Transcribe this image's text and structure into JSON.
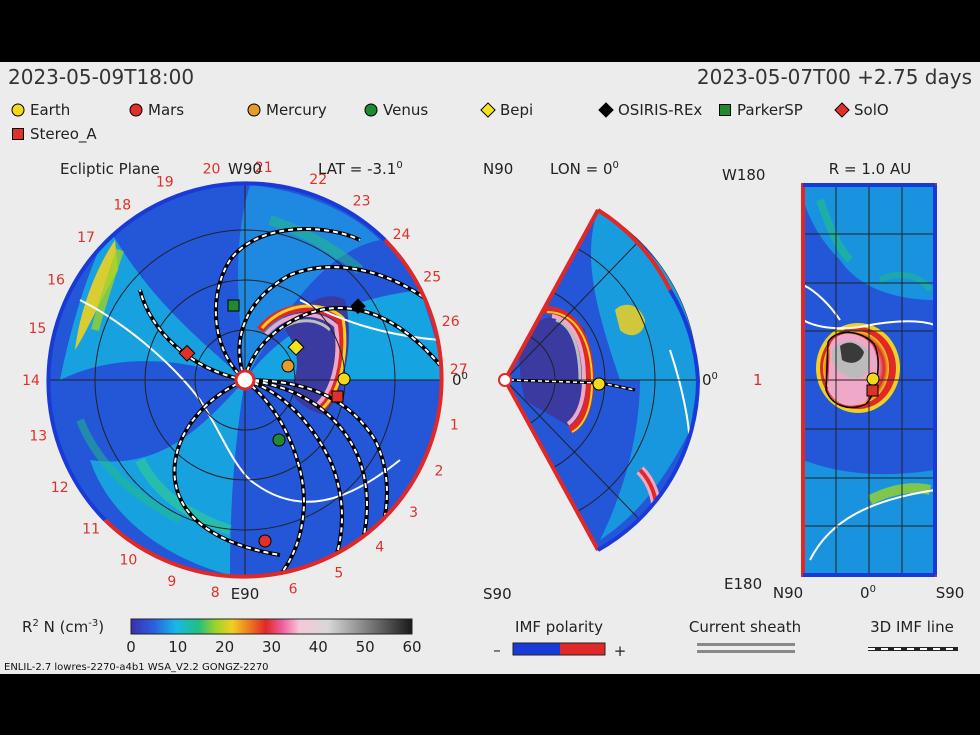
{
  "header": {
    "left_time": "2023-05-09T18:00",
    "right_time": "2023-05-07T00 +2.75 days"
  },
  "legend": [
    {
      "label": "Earth",
      "marker": "circle",
      "color": "#f2d91a"
    },
    {
      "label": "Mars",
      "marker": "circle",
      "color": "#e0302a"
    },
    {
      "label": "Mercury",
      "marker": "circle",
      "color": "#e89a2a"
    },
    {
      "label": "Venus",
      "marker": "circle",
      "color": "#1f8a2e"
    },
    {
      "label": "Bepi",
      "marker": "diamond",
      "color": "#f2e41a"
    },
    {
      "label": "OSIRIS-REx",
      "marker": "diamond",
      "color": "#000000"
    },
    {
      "label": "ParkerSP",
      "marker": "square",
      "color": "#1f8a2e"
    },
    {
      "label": "SolO",
      "marker": "diamond",
      "color": "#e0302a"
    },
    {
      "label": "Stereo_A",
      "marker": "square",
      "color": "#e0302a"
    }
  ],
  "ecliptic": {
    "title": "Ecliptic Plane",
    "lat_label": "LAT = -3.1",
    "lat_sup": "0",
    "top_label": "W90",
    "bottom_label": "E90",
    "zero_label": "0",
    "zero_sup": "0",
    "carrington_labels": [
      "1",
      "2",
      "3",
      "4",
      "5",
      "6",
      "8",
      "9",
      "10",
      "11",
      "12",
      "13",
      "14",
      "15",
      "16",
      "17",
      "18",
      "19",
      "20",
      "21",
      "22",
      "23",
      "24",
      "25",
      "26",
      "27"
    ]
  },
  "meridional": {
    "lon_label": "LON = 0",
    "lon_sup": "0",
    "top_label": "N90",
    "bottom_label": "S90",
    "zero_label": "0",
    "zero_sup": "0"
  },
  "radial": {
    "r_label": "R = 1.0 AU",
    "top_label": "W180",
    "bottom_label": "E180",
    "side_label": "1",
    "x_labels": [
      "N90",
      "0",
      "S90"
    ],
    "x_mid_sup": "0"
  },
  "colorbar": {
    "label": "R",
    "label_sup": "2",
    "label_rest": " N (cm",
    "label_rest_sup": "-3",
    "label_end": ")",
    "ticks": [
      "0",
      "10",
      "20",
      "30",
      "40",
      "50",
      "60"
    ]
  },
  "imf": {
    "label": "IMF polarity",
    "minus": "–",
    "plus": "+"
  },
  "sheath": {
    "label": "Current sheath"
  },
  "imfline": {
    "label": "3D IMF line"
  },
  "footer": "ENLIL-2.7 lowres-2270-a4b1 WSA_V2.2 GONGZ-2270"
}
